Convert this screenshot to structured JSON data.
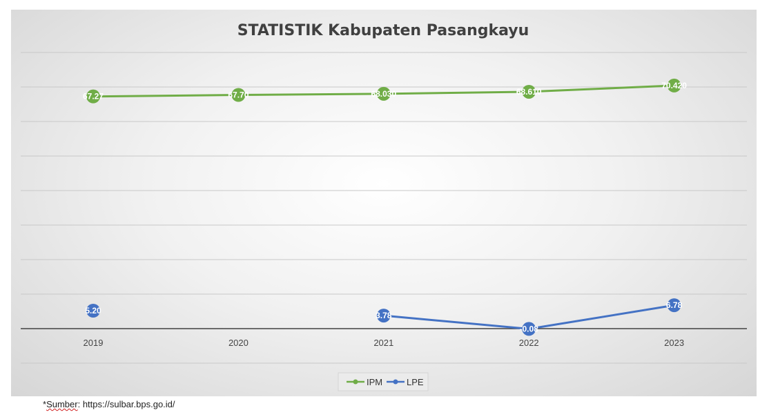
{
  "chart_data": {
    "type": "line",
    "title": "STATISTIK Kabupaten Pasangkayu",
    "categories": [
      "2019",
      "2020",
      "2021",
      "2022",
      "2023"
    ],
    "series": [
      {
        "name": "IPM",
        "color": "#70ad47",
        "values": [
          67.27,
          67.7,
          68.03,
          68.61,
          70.42
        ],
        "labels": [
          "67.27",
          "67.70",
          "68.030",
          "68.610",
          "70.420"
        ],
        "connected_from_index": 0
      },
      {
        "name": "LPE",
        "color": "#4472c4",
        "values": [
          5.2,
          null,
          3.78,
          -0.08,
          6.78
        ],
        "labels": [
          "5.20",
          "",
          "3.78",
          "-0.08",
          "6.78"
        ],
        "connected_from_index": 2
      }
    ],
    "ylim": [
      0,
      80
    ],
    "grid": true,
    "legend_position": "bottom"
  },
  "footer": {
    "asterisk": "*",
    "source_word": "Sumber",
    "source_rest": ": https://sulbar.bps.go.id/"
  }
}
